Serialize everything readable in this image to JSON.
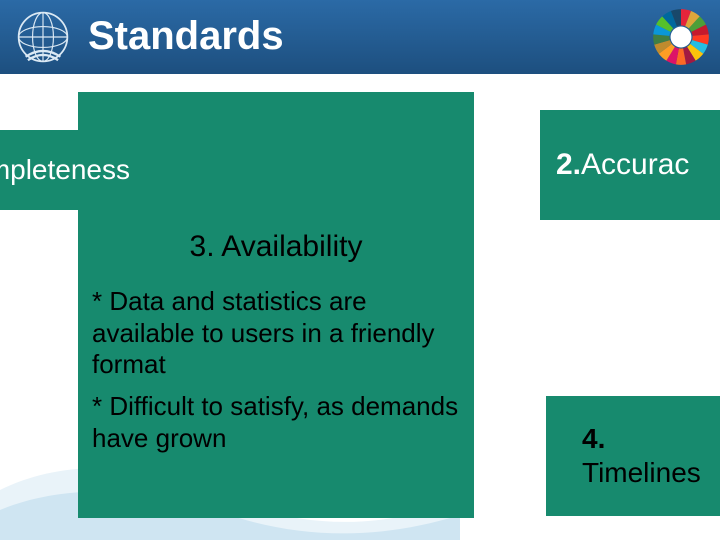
{
  "header": {
    "title": "Standards",
    "band_gradient_top": "#2b6aa6",
    "band_gradient_bottom": "#1d4f7f",
    "title_color": "#ffffff",
    "title_fontsize": 40
  },
  "colors": {
    "box_bg": "#178a6e",
    "slide_bg": "#ffffff",
    "white_text": "#ffffff",
    "black_text": "#000000",
    "un_logo": "#dbe9f4",
    "wave1": "#e9f3f9",
    "wave2": "#cfe5f2"
  },
  "sdg_wheel_colors": [
    "#e5243b",
    "#dda63a",
    "#4c9f38",
    "#c5192d",
    "#ff3a21",
    "#26bde2",
    "#fcc30b",
    "#a21942",
    "#fd6925",
    "#dd1367",
    "#fd9d24",
    "#bf8b2e",
    "#3f7e44",
    "#0a97d9",
    "#56c02b",
    "#00689d",
    "#19486a"
  ],
  "boxes": {
    "b1": {
      "num": "",
      "label": "mpleteness",
      "fontsize": 28
    },
    "b2": {
      "num": "2.",
      "label": " Accurac",
      "fontsize": 30
    },
    "b3": {
      "num": "3.",
      "label": " Availability",
      "title_fontsize": 30,
      "body_fontsize": 26,
      "bullets": [
        "* Data and statistics are available to users in a friendly format",
        "* Difficult to satisfy, as demands have grown"
      ]
    },
    "b4": {
      "num": "4.",
      "label": "Timelines",
      "fontsize": 28
    }
  }
}
